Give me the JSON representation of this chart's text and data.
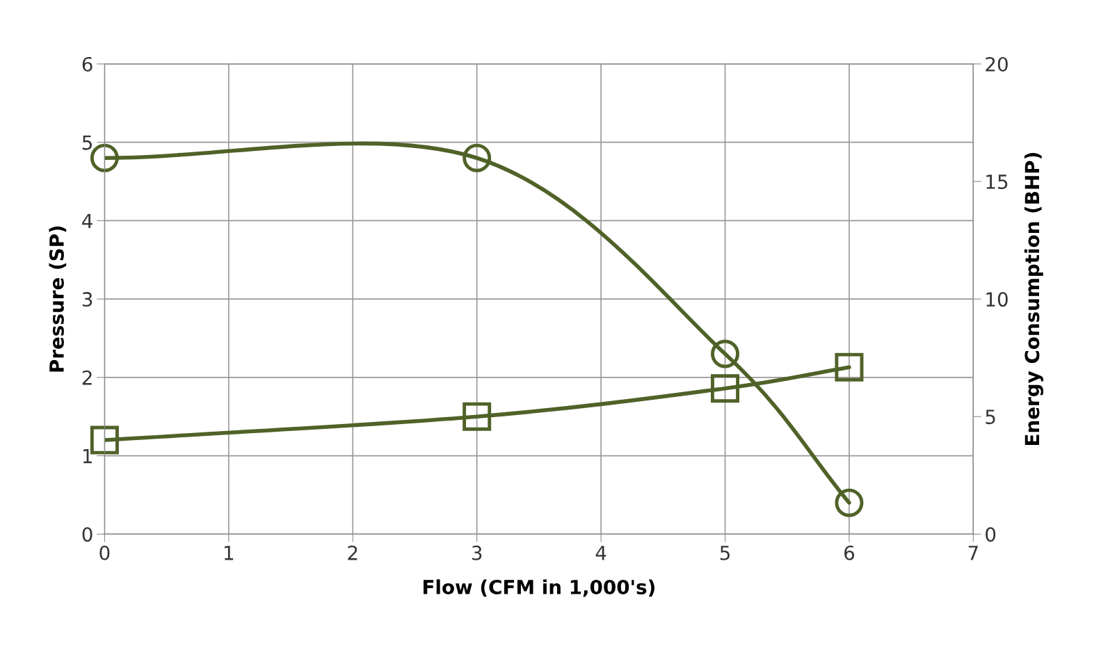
{
  "chart_data": {
    "type": "line",
    "xlabel": "Flow (CFM in 1,000's)",
    "ylabel": "Pressure (SP)",
    "y2label": "Energy Consumption (BHP)",
    "xlim": [
      0,
      7
    ],
    "xticks": [
      0,
      1,
      2,
      3,
      4,
      5,
      6,
      7
    ],
    "ylim": [
      0,
      6
    ],
    "yticks": [
      0,
      1,
      2,
      3,
      4,
      5,
      6
    ],
    "y2lim": [
      0,
      20
    ],
    "y2ticks": [
      0,
      5,
      10,
      15,
      20
    ],
    "grid": true,
    "line_style": "solid",
    "series": [
      {
        "color": "#4f6228",
        "marker": "circle",
        "x": [
          0,
          3,
          5,
          6
        ],
        "values": [
          4.8,
          4.8,
          2.3,
          0.4
        ]
      },
      {
        "color": "#4f6228",
        "marker": "square",
        "axis": "y2",
        "x": [
          0,
          3,
          5,
          6
        ],
        "values": [
          4,
          5,
          6.2,
          7.1
        ]
      }
    ]
  }
}
